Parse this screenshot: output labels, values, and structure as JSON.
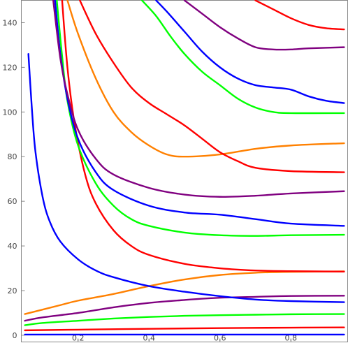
{
  "chart_data": {
    "type": "line",
    "title": "",
    "xlabel": "",
    "ylabel": "",
    "xlim": [
      0.04,
      0.96
    ],
    "ylim": [
      -3,
      150
    ],
    "x_ticks": [
      {
        "value": 0.2,
        "label": "0.2"
      },
      {
        "value": 0.4,
        "label": "0.4"
      },
      {
        "value": 0.6,
        "label": "0.6"
      },
      {
        "value": 0.8,
        "label": "0.8"
      }
    ],
    "y_ticks": [
      {
        "value": 0,
        "label": "0"
      },
      {
        "value": 20,
        "label": "20"
      },
      {
        "value": 40,
        "label": "40"
      },
      {
        "value": 60,
        "label": "60"
      },
      {
        "value": 80,
        "label": "80"
      },
      {
        "value": 100,
        "label": "100"
      },
      {
        "value": 120,
        "label": "120"
      },
      {
        "value": 140,
        "label": "140"
      }
    ],
    "grid": false,
    "legend": "none",
    "series": [
      {
        "color": "#0000ff",
        "points": [
          [
            0.05,
            0.3
          ],
          [
            0.3,
            0.3
          ],
          [
            0.6,
            0.3
          ],
          [
            0.95,
            0.3
          ]
        ]
      },
      {
        "color": "#ff0000",
        "points": [
          [
            0.05,
            2.2
          ],
          [
            0.2,
            2.5
          ],
          [
            0.4,
            2.9
          ],
          [
            0.6,
            3.2
          ],
          [
            0.8,
            3.4
          ],
          [
            0.95,
            3.5
          ]
        ]
      },
      {
        "color": "#00ff00",
        "points": [
          [
            0.05,
            4.5
          ],
          [
            0.1,
            5.5
          ],
          [
            0.2,
            6.5
          ],
          [
            0.3,
            7.5
          ],
          [
            0.4,
            8.2
          ],
          [
            0.5,
            8.7
          ],
          [
            0.6,
            9.0
          ],
          [
            0.7,
            9.2
          ],
          [
            0.8,
            9.4
          ],
          [
            0.95,
            9.5
          ]
        ]
      },
      {
        "color": "#800080",
        "points": [
          [
            0.05,
            6.5
          ],
          [
            0.1,
            8
          ],
          [
            0.2,
            10
          ],
          [
            0.3,
            12.5
          ],
          [
            0.4,
            14.5
          ],
          [
            0.5,
            15.8
          ],
          [
            0.6,
            16.8
          ],
          [
            0.7,
            17.2
          ],
          [
            0.8,
            17.6
          ],
          [
            0.95,
            17.7
          ]
        ]
      },
      {
        "color": "#ff8000",
        "points": [
          [
            0.05,
            9.5
          ],
          [
            0.1,
            11.5
          ],
          [
            0.15,
            13.5
          ],
          [
            0.2,
            15.5
          ],
          [
            0.3,
            18.5
          ],
          [
            0.4,
            22
          ],
          [
            0.5,
            25
          ],
          [
            0.6,
            27
          ],
          [
            0.7,
            28
          ],
          [
            0.8,
            28.4
          ],
          [
            0.95,
            28.6
          ]
        ]
      },
      {
        "color": "#0000ff",
        "points": [
          [
            0.06,
            126
          ],
          [
            0.07,
            101
          ],
          [
            0.08,
            82
          ],
          [
            0.1,
            62
          ],
          [
            0.12,
            51
          ],
          [
            0.15,
            42
          ],
          [
            0.2,
            34
          ],
          [
            0.25,
            29
          ],
          [
            0.3,
            26
          ],
          [
            0.4,
            22
          ],
          [
            0.5,
            19.5
          ],
          [
            0.6,
            17.5
          ],
          [
            0.7,
            16
          ],
          [
            0.8,
            15.3
          ],
          [
            0.95,
            14.8
          ]
        ]
      },
      {
        "color": "#ff0000",
        "points": [
          [
            0.155,
            150
          ],
          [
            0.17,
            120
          ],
          [
            0.19,
            95
          ],
          [
            0.22,
            72
          ],
          [
            0.25,
            59
          ],
          [
            0.3,
            47
          ],
          [
            0.35,
            40
          ],
          [
            0.4,
            36
          ],
          [
            0.5,
            32
          ],
          [
            0.6,
            30
          ],
          [
            0.7,
            29
          ],
          [
            0.8,
            28.7
          ],
          [
            0.95,
            28.5
          ]
        ]
      },
      {
        "color": "#00ff00",
        "points": [
          [
            0.14,
            150
          ],
          [
            0.155,
            125
          ],
          [
            0.17,
            105
          ],
          [
            0.2,
            85
          ],
          [
            0.25,
            68
          ],
          [
            0.3,
            58
          ],
          [
            0.35,
            52
          ],
          [
            0.4,
            49
          ],
          [
            0.5,
            46
          ],
          [
            0.6,
            44.8
          ],
          [
            0.7,
            44.5
          ],
          [
            0.8,
            44.8
          ],
          [
            0.95,
            45
          ]
        ]
      },
      {
        "color": "#0000ff",
        "points": [
          [
            0.135,
            150
          ],
          [
            0.15,
            126
          ],
          [
            0.17,
            106
          ],
          [
            0.2,
            88
          ],
          [
            0.25,
            73
          ],
          [
            0.3,
            65
          ],
          [
            0.4,
            58
          ],
          [
            0.5,
            55
          ],
          [
            0.6,
            54
          ],
          [
            0.7,
            52
          ],
          [
            0.8,
            50
          ],
          [
            0.95,
            49
          ]
        ]
      },
      {
        "color": "#800080",
        "points": [
          [
            0.13,
            150
          ],
          [
            0.15,
            124
          ],
          [
            0.17,
            108
          ],
          [
            0.2,
            92
          ],
          [
            0.25,
            79
          ],
          [
            0.3,
            72
          ],
          [
            0.4,
            66
          ],
          [
            0.5,
            63
          ],
          [
            0.6,
            62
          ],
          [
            0.7,
            62.5
          ],
          [
            0.8,
            63.5
          ],
          [
            0.95,
            64.5
          ]
        ]
      },
      {
        "color": "#ff8000",
        "points": [
          [
            0.17,
            150
          ],
          [
            0.2,
            135
          ],
          [
            0.25,
            115
          ],
          [
            0.3,
            100
          ],
          [
            0.35,
            91
          ],
          [
            0.4,
            85
          ],
          [
            0.45,
            81
          ],
          [
            0.5,
            80
          ],
          [
            0.6,
            81
          ],
          [
            0.7,
            83.5
          ],
          [
            0.8,
            85
          ],
          [
            0.95,
            86
          ]
        ]
      },
      {
        "color": "#ff0000",
        "points": [
          [
            0.205,
            150
          ],
          [
            0.25,
            135
          ],
          [
            0.3,
            122
          ],
          [
            0.35,
            111
          ],
          [
            0.4,
            104
          ],
          [
            0.45,
            99
          ],
          [
            0.5,
            94
          ],
          [
            0.55,
            88
          ],
          [
            0.6,
            82
          ],
          [
            0.65,
            78
          ],
          [
            0.7,
            75
          ],
          [
            0.8,
            73.5
          ],
          [
            0.95,
            73
          ]
        ]
      },
      {
        "color": "#00ff00",
        "points": [
          [
            0.38,
            150
          ],
          [
            0.42,
            143
          ],
          [
            0.46,
            134
          ],
          [
            0.5,
            126
          ],
          [
            0.55,
            118
          ],
          [
            0.6,
            112
          ],
          [
            0.65,
            106
          ],
          [
            0.7,
            102
          ],
          [
            0.75,
            100
          ],
          [
            0.8,
            99.5
          ],
          [
            0.95,
            99.5
          ]
        ]
      },
      {
        "color": "#0000ff",
        "points": [
          [
            0.42,
            150
          ],
          [
            0.45,
            145
          ],
          [
            0.5,
            136
          ],
          [
            0.55,
            127
          ],
          [
            0.6,
            120
          ],
          [
            0.65,
            115
          ],
          [
            0.7,
            112
          ],
          [
            0.75,
            111
          ],
          [
            0.8,
            110
          ],
          [
            0.85,
            107
          ],
          [
            0.9,
            105
          ],
          [
            0.95,
            104
          ]
        ]
      },
      {
        "color": "#800080",
        "points": [
          [
            0.5,
            150
          ],
          [
            0.55,
            144
          ],
          [
            0.6,
            138
          ],
          [
            0.65,
            133
          ],
          [
            0.7,
            129
          ],
          [
            0.75,
            128
          ],
          [
            0.8,
            128
          ],
          [
            0.85,
            128.5
          ],
          [
            0.95,
            129
          ]
        ]
      },
      {
        "color": "#ff0000",
        "points": [
          [
            0.7,
            150
          ],
          [
            0.75,
            146
          ],
          [
            0.8,
            142
          ],
          [
            0.85,
            139
          ],
          [
            0.9,
            137.5
          ],
          [
            0.95,
            137
          ]
        ]
      }
    ]
  }
}
